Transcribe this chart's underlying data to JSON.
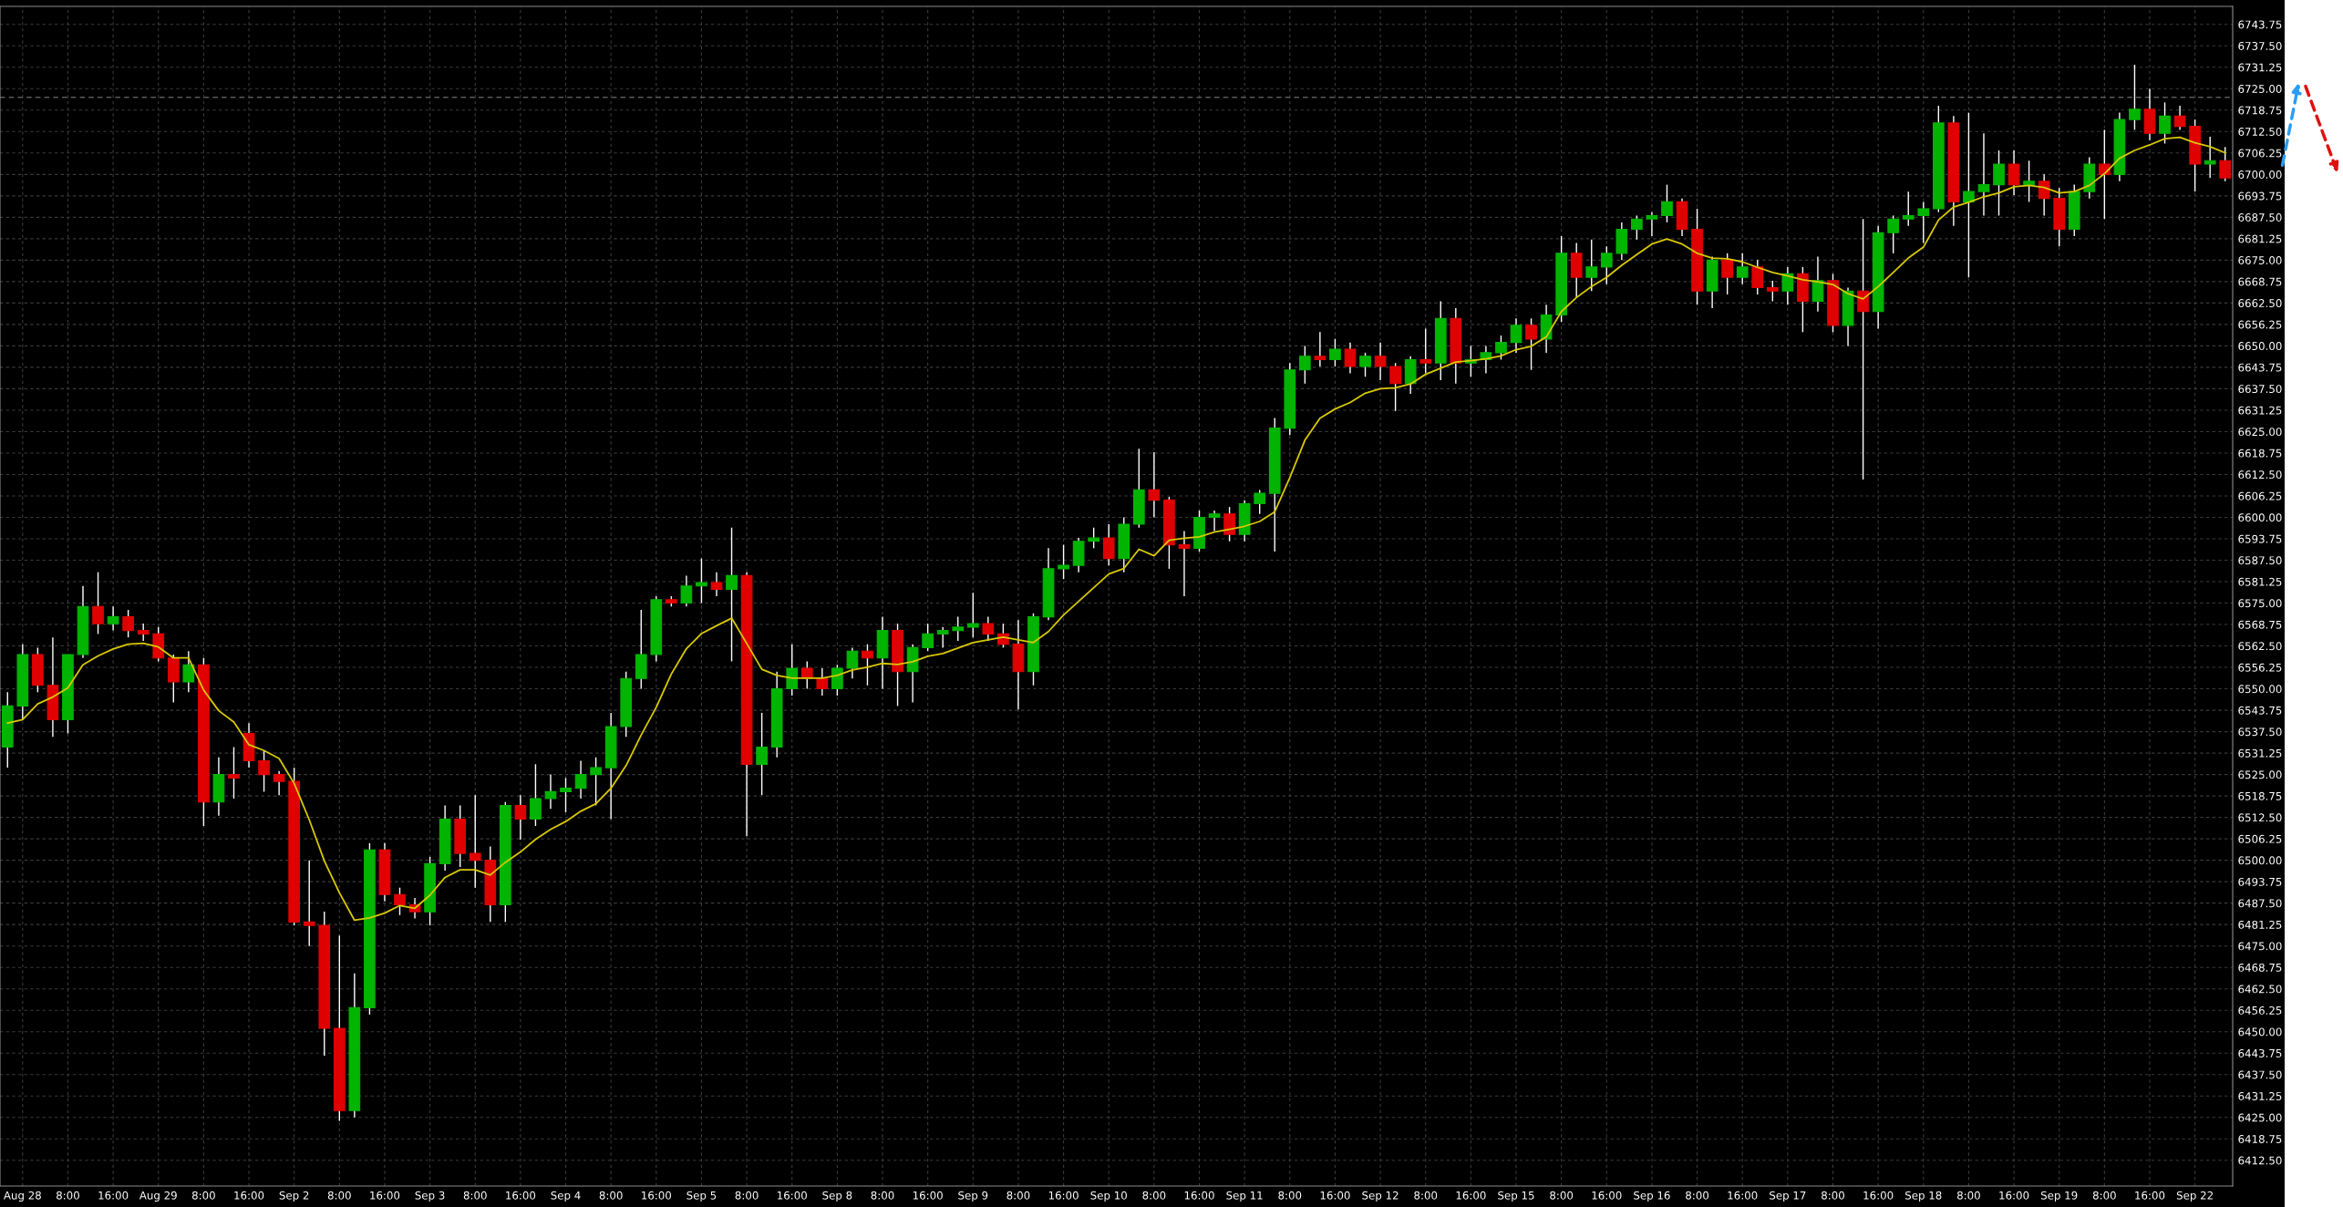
{
  "chart_data": {
    "type": "candlestick",
    "categories": [
      null,
      "Aug 28",
      null,
      null,
      "8:00",
      null,
      null,
      "16:00",
      null,
      null,
      "Aug 29",
      null,
      null,
      "8:00",
      null,
      null,
      "16:00",
      null,
      null,
      "Sep 2",
      null,
      null,
      "8:00",
      null,
      null,
      "16:00",
      null,
      null,
      "Sep 3",
      null,
      null,
      "8:00",
      null,
      null,
      "16:00",
      null,
      null,
      "Sep 4",
      null,
      null,
      "8:00",
      null,
      null,
      "16:00",
      null,
      null,
      "Sep 5",
      null,
      null,
      "8:00",
      null,
      null,
      "16:00",
      null,
      null,
      "Sep 8",
      null,
      null,
      "8:00",
      null,
      null,
      "16:00",
      null,
      null,
      "Sep 9",
      null,
      null,
      "8:00",
      null,
      null,
      "16:00",
      null,
      null,
      "Sep 10",
      null,
      null,
      "8:00",
      null,
      null,
      "16:00",
      null,
      null,
      "Sep 11",
      null,
      null,
      "8:00",
      null,
      null,
      "16:00",
      null,
      null,
      "Sep 12",
      null,
      null,
      "8:00",
      null,
      null,
      "16:00",
      null,
      null,
      "Sep 15",
      null,
      null,
      "8:00",
      null,
      null,
      "16:00",
      null,
      null,
      "Sep 16",
      null,
      null,
      "8:00",
      null,
      null,
      "16:00",
      null,
      null,
      "Sep 17",
      null,
      null,
      "8:00",
      null,
      null,
      "16:00",
      null,
      null,
      "Sep 18",
      null,
      null,
      "8:00",
      null,
      null,
      "16:00",
      null,
      null,
      "Sep 19",
      null,
      null,
      "8:00",
      null,
      null,
      "16:00",
      null,
      null,
      "Sep 22",
      null,
      null
    ],
    "ohlc": [
      [
        6533,
        6549,
        6527,
        6545
      ],
      [
        6545,
        6563,
        6541,
        6560
      ],
      [
        6560,
        6562,
        6549,
        6551
      ],
      [
        6551,
        6565,
        6536,
        6541
      ],
      [
        6541,
        6560,
        6537,
        6560
      ],
      [
        6560,
        6580,
        6559,
        6574
      ],
      [
        6574,
        6584,
        6566,
        6569
      ],
      [
        6569,
        6574,
        6567,
        6571
      ],
      [
        6571,
        6573,
        6565,
        6567
      ],
      [
        6567,
        6569,
        6564,
        6566
      ],
      [
        6566,
        6568,
        6558,
        6559
      ],
      [
        6559,
        6560,
        6546,
        6552
      ],
      [
        6552,
        6561,
        6549,
        6557
      ],
      [
        6557,
        6559,
        6510,
        6517
      ],
      [
        6517,
        6530,
        6513,
        6525
      ],
      [
        6525,
        6533,
        6518,
        6524
      ],
      [
        6537,
        6540,
        6527,
        6529
      ],
      [
        6529,
        6532,
        6520,
        6525
      ],
      [
        6525,
        6526,
        6519,
        6523
      ],
      [
        6523,
        6527,
        6481,
        6482
      ],
      [
        6482,
        6500,
        6475,
        6481
      ],
      [
        6481,
        6485,
        6443,
        6451
      ],
      [
        6451,
        6478,
        6424,
        6427
      ],
      [
        6427,
        6467,
        6425,
        6457
      ],
      [
        6457,
        6505,
        6455,
        6503
      ],
      [
        6503,
        6505,
        6488,
        6490
      ],
      [
        6490,
        6492,
        6484,
        6487
      ],
      [
        6487,
        6489,
        6483,
        6485
      ],
      [
        6485,
        6501,
        6481,
        6499
      ],
      [
        6499,
        6516,
        6497,
        6512
      ],
      [
        6512,
        6516,
        6498,
        6502
      ],
      [
        6502,
        6519,
        6492,
        6500
      ],
      [
        6500,
        6504,
        6482,
        6487
      ],
      [
        6487,
        6517,
        6482,
        6516
      ],
      [
        6516,
        6519,
        6506,
        6512
      ],
      [
        6512,
        6528,
        6510,
        6518
      ],
      [
        6518,
        6525,
        6515,
        6520
      ],
      [
        6520,
        6524,
        6514,
        6521
      ],
      [
        6521,
        6529,
        6518,
        6525
      ],
      [
        6525,
        6530,
        6516,
        6527
      ],
      [
        6527,
        6543,
        6512,
        6539
      ],
      [
        6539,
        6555,
        6536,
        6553
      ],
      [
        6553,
        6573,
        6550,
        6560
      ],
      [
        6560,
        6577,
        6558,
        6576
      ],
      [
        6576,
        6577,
        6574,
        6575
      ],
      [
        6575,
        6583,
        6574,
        6580
      ],
      [
        6580,
        6588,
        6575,
        6581
      ],
      [
        6581,
        6584,
        6577,
        6579
      ],
      [
        6579,
        6597,
        6558,
        6583
      ],
      [
        6583,
        6584,
        6507,
        6528
      ],
      [
        6528,
        6543,
        6519,
        6533
      ],
      [
        6533,
        6555,
        6530,
        6550
      ],
      [
        6550,
        6563,
        6548,
        6556
      ],
      [
        6556,
        6558,
        6550,
        6553
      ],
      [
        6553,
        6556,
        6548,
        6550
      ],
      [
        6550,
        6557,
        6548,
        6556
      ],
      [
        6556,
        6562,
        6553,
        6561
      ],
      [
        6561,
        6563,
        6551,
        6559
      ],
      [
        6559,
        6571,
        6550,
        6567
      ],
      [
        6567,
        6569,
        6545,
        6555
      ],
      [
        6555,
        6563,
        6546,
        6562
      ],
      [
        6562,
        6569,
        6561,
        6566
      ],
      [
        6566,
        6568,
        6562,
        6567
      ],
      [
        6567,
        6571,
        6564,
        6568
      ],
      [
        6568,
        6578,
        6565,
        6569
      ],
      [
        6569,
        6571,
        6564,
        6566
      ],
      [
        6566,
        6569,
        6562,
        6563
      ],
      [
        6563,
        6570,
        6544,
        6555
      ],
      [
        6555,
        6572,
        6551,
        6571
      ],
      [
        6571,
        6591,
        6570,
        6585
      ],
      [
        6585,
        6592,
        6582,
        6586
      ],
      [
        6586,
        6594,
        6584,
        6593
      ],
      [
        6593,
        6597,
        6591,
        6594
      ],
      [
        6594,
        6598,
        6586,
        6588
      ],
      [
        6588,
        6600,
        6584,
        6598
      ],
      [
        6598,
        6620,
        6597,
        6608
      ],
      [
        6608,
        6619,
        6600,
        6605
      ],
      [
        6605,
        6606,
        6585,
        6592
      ],
      [
        6592,
        6596,
        6577,
        6591
      ],
      [
        6591,
        6602,
        6590,
        6600
      ],
      [
        6600,
        6602,
        6596,
        6601
      ],
      [
        6601,
        6603,
        6593,
        6595
      ],
      [
        6595,
        6605,
        6593,
        6604
      ],
      [
        6604,
        6608,
        6601,
        6607
      ],
      [
        6607,
        6629,
        6590,
        6626
      ],
      [
        6626,
        6645,
        6624,
        6643
      ],
      [
        6643,
        6650,
        6639,
        6647
      ],
      [
        6647,
        6654,
        6644,
        6646
      ],
      [
        6646,
        6652,
        6644,
        6649
      ],
      [
        6649,
        6651,
        6642,
        6644
      ],
      [
        6644,
        6648,
        6641,
        6647
      ],
      [
        6647,
        6651,
        6640,
        6644
      ],
      [
        6644,
        6645,
        6631,
        6639
      ],
      [
        6639,
        6647,
        6636,
        6646
      ],
      [
        6646,
        6655,
        6642,
        6645
      ],
      [
        6645,
        6663,
        6640,
        6658
      ],
      [
        6658,
        6661,
        6639,
        6645
      ],
      [
        6645,
        6650,
        6641,
        6646
      ],
      [
        6646,
        6650,
        6642,
        6648
      ],
      [
        6648,
        6653,
        6646,
        6651
      ],
      [
        6651,
        6658,
        6648,
        6656
      ],
      [
        6656,
        6658,
        6643,
        6652
      ],
      [
        6652,
        6662,
        6648,
        6659
      ],
      [
        6659,
        6682,
        6657,
        6677
      ],
      [
        6677,
        6680,
        6664,
        6670
      ],
      [
        6670,
        6681,
        6666,
        6673
      ],
      [
        6673,
        6679,
        6668,
        6677
      ],
      [
        6677,
        6686,
        6675,
        6684
      ],
      [
        6684,
        6688,
        6681,
        6687
      ],
      [
        6687,
        6689,
        6682,
        6688
      ],
      [
        6688,
        6697,
        6686,
        6692
      ],
      [
        6692,
        6693,
        6682,
        6684
      ],
      [
        6684,
        6690,
        6662,
        6666
      ],
      [
        6666,
        6676,
        6661,
        6675
      ],
      [
        6675,
        6677,
        6665,
        6670
      ],
      [
        6670,
        6677,
        6668,
        6673
      ],
      [
        6673,
        6675,
        6665,
        6667
      ],
      [
        6667,
        6669,
        6663,
        6666
      ],
      [
        6666,
        6673,
        6662,
        6671
      ],
      [
        6671,
        6673,
        6654,
        6663
      ],
      [
        6663,
        6676,
        6660,
        6669
      ],
      [
        6669,
        6671,
        6654,
        6656
      ],
      [
        6656,
        6667,
        6650,
        6666
      ],
      [
        6666,
        6687,
        6611,
        6660
      ],
      [
        6660,
        6685,
        6655,
        6683
      ],
      [
        6683,
        6688,
        6677,
        6687
      ],
      [
        6687,
        6695,
        6685,
        6688
      ],
      [
        6688,
        6692,
        6680,
        6690
      ],
      [
        6690,
        6720,
        6689,
        6715
      ],
      [
        6715,
        6717,
        6685,
        6692
      ],
      [
        6692,
        6718,
        6670,
        6695
      ],
      [
        6695,
        6712,
        6688,
        6697
      ],
      [
        6697,
        6707,
        6688,
        6703
      ],
      [
        6703,
        6707,
        6694,
        6697
      ],
      [
        6697,
        6704,
        6692,
        6698
      ],
      [
        6698,
        6700,
        6688,
        6693
      ],
      [
        6693,
        6696,
        6679,
        6684
      ],
      [
        6684,
        6697,
        6682,
        6695
      ],
      [
        6695,
        6705,
        6693,
        6703
      ],
      [
        6703,
        6713,
        6687,
        6700
      ],
      [
        6700,
        6718,
        6698,
        6716
      ],
      [
        6716,
        6732,
        6713,
        6719
      ],
      [
        6719,
        6725,
        6710,
        6712
      ],
      [
        6712,
        6721,
        6709,
        6717
      ],
      [
        6717,
        6720,
        6713,
        6714
      ],
      [
        6714,
        6716,
        6695,
        6703
      ],
      [
        6703,
        6711,
        6699,
        6704
      ],
      [
        6704,
        6708,
        6698,
        6699
      ]
    ],
    "colors": [
      "#00b400",
      "#00b400",
      "#e00000",
      "#e00000",
      "#00b400",
      "#00b400",
      "#e00000",
      "#00b400",
      "#e00000",
      "#e00000",
      "#e00000",
      "#e00000",
      "#00b400",
      "#e00000",
      "#00b400",
      "#e00000",
      "#e00000",
      "#e00000",
      "#e00000",
      "#e00000",
      "#e00000",
      "#e00000",
      "#e00000",
      "#00b400",
      "#00b400",
      "#e00000",
      "#e00000",
      "#e00000",
      "#00b400",
      "#00b400",
      "#e00000",
      "#e00000",
      "#e00000",
      "#00b400",
      "#e00000",
      "#00b400",
      "#00b400",
      "#00b400",
      "#00b400",
      "#00b400",
      "#00b400",
      "#00b400",
      "#00b400",
      "#00b400",
      "#e00000",
      "#00b400",
      "#00b400",
      "#e00000",
      "#00b400",
      "#e00000",
      "#00b400",
      "#00b400",
      "#00b400",
      "#e00000",
      "#e00000",
      "#00b400",
      "#00b400",
      "#e00000",
      "#00b400",
      "#e00000",
      "#00b400",
      "#00b400",
      "#00b400",
      "#00b400",
      "#00b400",
      "#e00000",
      "#e00000",
      "#e00000",
      "#00b400",
      "#00b400",
      "#00b400",
      "#00b400",
      "#00b400",
      "#e00000",
      "#00b400",
      "#00b400",
      "#e00000",
      "#e00000",
      "#e00000",
      "#00b400",
      "#00b400",
      "#e00000",
      "#00b400",
      "#00b400",
      "#00b400",
      "#00b400",
      "#00b400",
      "#e00000",
      "#00b400",
      "#e00000",
      "#00b400",
      "#e00000",
      "#e00000",
      "#00b400",
      "#e00000",
      "#00b400",
      "#e00000",
      "#00b400",
      "#00b400",
      "#00b400",
      "#00b400",
      "#e00000",
      "#00b400",
      "#00b400",
      "#e00000",
      "#00b400",
      "#00b400",
      "#00b400",
      "#00b400",
      "#00b400",
      "#00b400",
      "#e00000",
      "#e00000",
      "#00b400",
      "#e00000",
      "#00b400",
      "#e00000",
      "#e00000",
      "#00b400",
      "#e00000",
      "#00b400",
      "#e00000",
      "#00b400",
      "#e00000",
      "#00b400",
      "#00b400",
      "#00b400",
      "#00b400",
      "#00b400",
      "#e00000",
      "#00b400",
      "#00b400",
      "#00b400",
      "#e00000",
      "#00b400",
      "#e00000",
      "#e00000",
      "#00b400",
      "#00b400",
      "#e00000",
      "#00b400",
      "#00b400",
      "#e00000",
      "#00b400",
      "#e00000",
      "#e00000",
      "#00b400",
      "#e00000"
    ],
    "series": [
      {
        "type": "line",
        "color": "#d8c800",
        "values": [
          6540,
          6541,
          6545.6,
          6547.6,
          6550.3,
          6557,
          6559.6,
          6561.6,
          6563,
          6563.3,
          6562.2,
          6559,
          6559,
          6549.6,
          6543.6,
          6540.3,
          6533.7,
          6532,
          6529.7,
          6522.4,
          6511.8,
          6499.8,
          6490.5,
          6482.5,
          6483.2,
          6484.6,
          6486.8,
          6486,
          6489.8,
          6495,
          6497.2,
          6497.2,
          6495.7,
          6499.4,
          6502.4,
          6506.1,
          6509,
          6511.3,
          6514.3,
          6516.5,
          6521,
          6527.6,
          6536.5,
          6544.6,
          6554.3,
          6561.7,
          6566.1,
          6568.4,
          6570.6,
          6563.2,
          6555.7,
          6553.9,
          6553.1,
          6553.1,
          6553.1,
          6553.9,
          6555.5,
          6556.3,
          6557.4,
          6557.1,
          6557.9,
          6559.5,
          6560.3,
          6561.9,
          6563.5,
          6564.3,
          6565.1,
          6564.3,
          6563.5,
          6566.7,
          6571.5,
          6575.5,
          6579.5,
          6583.5,
          6585.1,
          6590.7,
          6588.8,
          6593.3,
          6593.9,
          6594.3,
          6595.7,
          6596.5,
          6597.4,
          6598.8,
          6601.6,
          6611.6,
          6622.5,
          6628.9,
          6631.6,
          6633.5,
          6636.2,
          6637.5,
          6637.8,
          6638.9,
          6641.7,
          6643.5,
          6645.3,
          6645.7,
          6646.2,
          6647.1,
          6648.9,
          6649.9,
          6652.6,
          6660,
          6664.1,
          6667.3,
          6670,
          6673.5,
          6676.6,
          6679.7,
          6681.2,
          6679.7,
          6677,
          6675.6,
          6675.4,
          6674.5,
          6672.9,
          6671.4,
          6670.4,
          6669.3,
          6668.7,
          6667.9,
          6665.2,
          6663.7,
          6667.3,
          6671.4,
          6675.6,
          6678.8,
          6686.7,
          6690.5,
          6691.9,
          6693.5,
          6694.6,
          6696.4,
          6696.8,
          6696.2,
          6694.6,
          6695,
          6696.8,
          6700.2,
          6704.7,
          6707,
          6708.6,
          6710.4,
          6710.8,
          6709.2,
          6708.1,
          6706.3
        ]
      }
    ],
    "ylim": [
      6405,
      6749
    ],
    "yticks": [
      {
        "value": 6412.5,
        "label": "6412.50"
      },
      {
        "value": 6418.75,
        "label": "6418.75"
      },
      {
        "value": 6425,
        "label": "6425.00"
      },
      {
        "value": 6431.25,
        "label": "6431.25"
      },
      {
        "value": 6437.5,
        "label": "6437.50"
      },
      {
        "value": 6443.75,
        "label": "6443.75"
      },
      {
        "value": 6450,
        "label": "6450.00"
      },
      {
        "value": 6456.25,
        "label": "6456.25"
      },
      {
        "value": 6462.5,
        "label": "6462.50"
      },
      {
        "value": 6468.75,
        "label": "6468.75"
      },
      {
        "value": 6475,
        "label": "6475.00"
      },
      {
        "value": 6481.25,
        "label": "6481.25"
      },
      {
        "value": 6487.5,
        "label": "6487.50"
      },
      {
        "value": 6493.75,
        "label": "6493.75"
      },
      {
        "value": 6500,
        "label": "6500.00"
      },
      {
        "value": 6506.25,
        "label": "6506.25"
      },
      {
        "value": 6512.5,
        "label": "6512.50"
      },
      {
        "value": 6518.75,
        "label": "6518.75"
      },
      {
        "value": 6525,
        "label": "6525.00"
      },
      {
        "value": 6531.25,
        "label": "6531.25"
      },
      {
        "value": 6537.5,
        "label": "6537.50"
      },
      {
        "value": 6543.75,
        "label": "6543.75"
      },
      {
        "value": 6550,
        "label": "6550.00"
      },
      {
        "value": 6556.25,
        "label": "6556.25"
      },
      {
        "value": 6562.5,
        "label": "6562.50"
      },
      {
        "value": 6568.75,
        "label": "6568.75"
      },
      {
        "value": 6575,
        "label": "6575.00"
      },
      {
        "value": 6581.25,
        "label": "6581.25"
      },
      {
        "value": 6587.5,
        "label": "6587.50"
      },
      {
        "value": 6593.75,
        "label": "6593.75"
      },
      {
        "value": 6600,
        "label": "6600.00"
      },
      {
        "value": 6606.25,
        "label": "6606.25"
      },
      {
        "value": 6612.5,
        "label": "6612.50"
      },
      {
        "value": 6618.75,
        "label": "6618.75"
      },
      {
        "value": 6625,
        "label": "6625.00"
      },
      {
        "value": 6631.25,
        "label": "6631.25"
      },
      {
        "value": 6637.5,
        "label": "6637.50"
      },
      {
        "value": 6643.75,
        "label": "6643.75"
      },
      {
        "value": 6650,
        "label": "6650.00"
      },
      {
        "value": 6656.25,
        "label": "6656.25"
      },
      {
        "value": 6662.5,
        "label": "6662.50"
      },
      {
        "value": 6668.75,
        "label": "6668.75"
      },
      {
        "value": 6675,
        "label": "6675.00"
      },
      {
        "value": 6681.25,
        "label": "6681.25"
      },
      {
        "value": 6687.5,
        "label": "6687.50"
      },
      {
        "value": 6693.75,
        "label": "6693.75"
      },
      {
        "value": 6700,
        "label": "6700.00"
      },
      {
        "value": 6706.25,
        "label": "6706.25"
      },
      {
        "value": 6712.5,
        "label": "6712.50"
      },
      {
        "value": 6718.75,
        "label": "6718.75"
      },
      {
        "value": 6725,
        "label": "6725.00"
      },
      {
        "value": 6731.25,
        "label": "6731.25"
      },
      {
        "value": 6737.5,
        "label": "6737.50"
      },
      {
        "value": 6743.75,
        "label": "6743.75"
      }
    ],
    "grid": true,
    "ref_lines": [
      {
        "axis": "y",
        "value": 6722.5,
        "color": "#5a5a5a",
        "line_style": "dashed"
      }
    ]
  }
}
